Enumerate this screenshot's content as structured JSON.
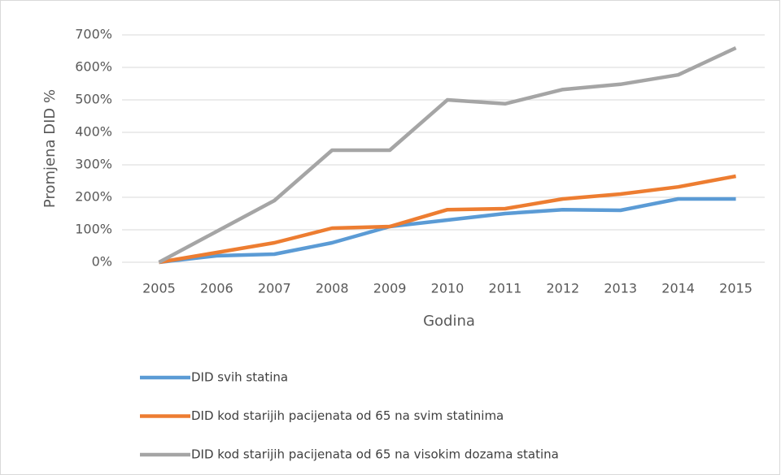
{
  "chart_data": {
    "type": "line",
    "x_label": "Godina",
    "y_label": "Promjena DID %",
    "categories": [
      "2005",
      "2006",
      "2007",
      "2008",
      "2009",
      "2010",
      "2011",
      "2012",
      "2013",
      "2014",
      "2015"
    ],
    "series": [
      {
        "name": "DID svih statina",
        "color": "#5b9bd5",
        "values": [
          0,
          20,
          25,
          60,
          110,
          130,
          150,
          162,
          160,
          195,
          195
        ]
      },
      {
        "name": "DID kod starijih pacijenata od 65 na svim statinima",
        "color": "#ed7d31",
        "values": [
          0,
          30,
          60,
          105,
          110,
          162,
          165,
          195,
          210,
          232,
          265
        ]
      },
      {
        "name": "DID kod starijih pacijenata od 65 na visokim dozama statina",
        "color": "#a5a5a5",
        "values": [
          0,
          95,
          190,
          345,
          345,
          500,
          488,
          532,
          548,
          577,
          660
        ]
      }
    ],
    "ylim": [
      0,
      700
    ],
    "yticks": [
      {
        "value": 0,
        "label": "0%"
      },
      {
        "value": 100,
        "label": "100%"
      },
      {
        "value": 200,
        "label": "200%"
      },
      {
        "value": 300,
        "label": "300%"
      },
      {
        "value": 400,
        "label": "400%"
      },
      {
        "value": 500,
        "label": "500%"
      },
      {
        "value": 600,
        "label": "600%"
      },
      {
        "value": 700,
        "label": "700%"
      }
    ],
    "grid": true,
    "legend": "bottom"
  }
}
